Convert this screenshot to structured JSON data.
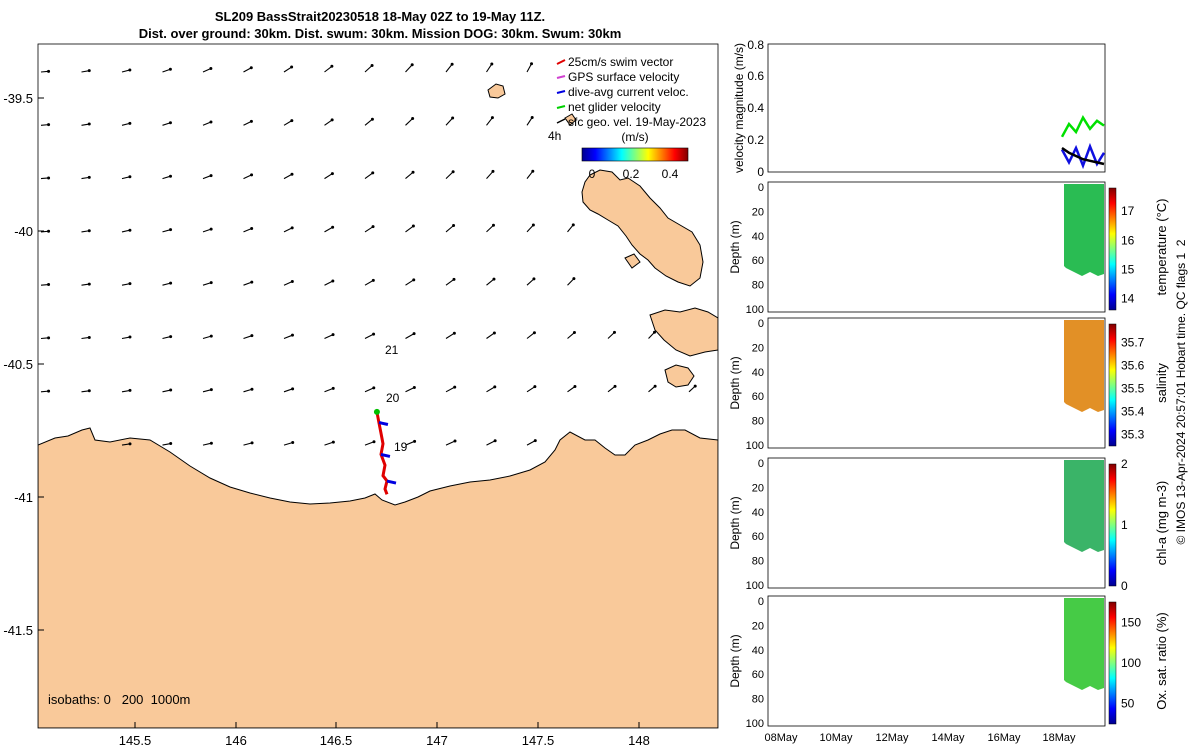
{
  "title": {
    "line1": "SL209 BassStrait20230518 18-May 02Z to 19-May 11Z.",
    "line2": "Dist. over ground: 30km. Dist. swum: 30km. Mission DOG: 30km. Swum: 30km"
  },
  "map": {
    "lon_ticks": [
      "145.5",
      "146",
      "146.5",
      "147",
      "147.5",
      "148"
    ],
    "lat_ticks": [
      "-39.5",
      "-40",
      "-40.5",
      "-41",
      "-41.5"
    ],
    "isobaths_text": "isobaths: 0   200  1000m",
    "legend": [
      {
        "label": "25cm/s swim vector",
        "color": "#e00000"
      },
      {
        "label": "GPS surface velocity",
        "color": "#d040d0"
      },
      {
        "label": "dive-avg current veloc.",
        "color": "#0000e0"
      },
      {
        "label": "net glider velocity",
        "color": "#00d000"
      },
      {
        "label": "sfc geo. vel. 19-May-2023",
        "color": "#000000"
      }
    ],
    "legend_note": "4h",
    "colorbar": {
      "unit": "(m/s)",
      "ticks": [
        "0",
        "0.2",
        "0.4"
      ]
    },
    "hour_labels": [
      "21",
      "20",
      "19"
    ],
    "land_color": "#f9c99a"
  },
  "side_panels": {
    "x_ticks": [
      "08May",
      "10May",
      "12May",
      "14May",
      "16May",
      "18May"
    ],
    "velocity": {
      "ylabel": "velocity magnitude (m/s)",
      "yticks": [
        "0",
        "0.2",
        "0.4",
        "0.6",
        "0.8"
      ]
    },
    "depth_yticks": [
      "0",
      "20",
      "40",
      "60",
      "80",
      "100"
    ],
    "depth_ylabel": "Depth (m)",
    "temperature": {
      "label": "temperature (°C)",
      "cticks": [
        "14",
        "15",
        "16",
        "17"
      ]
    },
    "salinity": {
      "label": "salinity",
      "cticks": [
        "35.3",
        "35.4",
        "35.5",
        "35.6",
        "35.7"
      ]
    },
    "chla": {
      "label": "chl-a (mg m-3)",
      "cticks": [
        "0",
        "1",
        "2"
      ]
    },
    "oxygen": {
      "label": "Ox. sat. ratio (%)",
      "cticks": [
        "50",
        "100",
        "150"
      ]
    }
  },
  "credit": "© IMOS 13-Apr-2024 20:57:01 Hobart time. QC flags 1  2",
  "chart_data": [
    {
      "type": "scatter",
      "title": "SL209 BassStrait20230518 18-May 02Z to 19-May 11Z.",
      "xlabel": "",
      "ylabel": "",
      "xlim": [
        145.0,
        148.4
      ],
      "ylim": [
        -41.85,
        -39.3
      ],
      "track": {
        "name": "glider track",
        "lon": [
          146.7,
          146.71,
          146.72,
          146.73,
          146.72,
          146.74,
          146.73,
          146.75,
          146.74,
          146.75
        ],
        "lat": [
          -40.68,
          -40.72,
          -40.76,
          -40.8,
          -40.84,
          -40.88,
          -40.92,
          -40.94,
          -40.97,
          -40.99
        ]
      },
      "hour_labels": [
        {
          "text": "21",
          "lon": 146.79,
          "lat": -40.45
        },
        {
          "text": "20",
          "lon": 146.79,
          "lat": -40.63
        },
        {
          "text": "19",
          "lon": 146.82,
          "lat": -40.82
        }
      ]
    },
    {
      "type": "line",
      "ylabel": "velocity magnitude (m/s)",
      "ylim": [
        0,
        0.8
      ],
      "x": [
        "18May 00",
        "18May 06",
        "18May 12",
        "18May 18",
        "19May 00",
        "19May 06",
        "19May 11"
      ],
      "series": [
        {
          "name": "net glider velocity",
          "values": [
            0.22,
            0.3,
            0.25,
            0.34,
            0.27,
            0.32,
            0.29
          ]
        },
        {
          "name": "dive-avg current veloc.",
          "values": [
            0.14,
            0.06,
            0.15,
            0.04,
            0.16,
            0.05,
            0.12
          ]
        },
        {
          "name": "sfc geo. vel.",
          "values": [
            0.15,
            0.12,
            0.1,
            0.08,
            0.07,
            0.06,
            0.05
          ]
        }
      ]
    },
    {
      "type": "heatmap",
      "ylabel": "Depth (m)",
      "clabel": "temperature (°C)",
      "clim": [
        13.6,
        17.8
      ],
      "typical": 15.8
    },
    {
      "type": "heatmap",
      "ylabel": "Depth (m)",
      "clabel": "salinity",
      "clim": [
        35.25,
        35.78
      ],
      "typical": 35.6
    },
    {
      "type": "heatmap",
      "ylabel": "Depth (m)",
      "clabel": "chl-a (mg m-3)",
      "clim": [
        0,
        2
      ],
      "typical": 0.9
    },
    {
      "type": "heatmap",
      "ylabel": "Depth (m)",
      "clabel": "Ox. sat. ratio (%)",
      "clim": [
        25,
        175
      ],
      "typical": 105
    }
  ]
}
